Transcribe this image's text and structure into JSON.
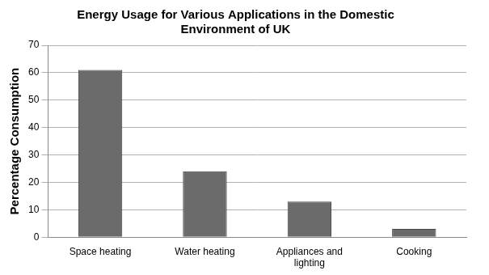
{
  "chart_data": {
    "type": "bar",
    "title": "Energy Usage for Various Applications in the Domestic Environment of UK",
    "y_label": "Percentage Consumption",
    "categories": [
      "Space heating",
      "Water heating",
      "Appliances and lighting",
      "Cooking"
    ],
    "values": [
      61,
      24,
      13,
      3
    ],
    "color": "#6b6b6b",
    "ylim": [
      0,
      70
    ],
    "yticks": [
      0,
      10,
      20,
      30,
      40,
      50,
      60,
      70
    ],
    "grid": true
  }
}
